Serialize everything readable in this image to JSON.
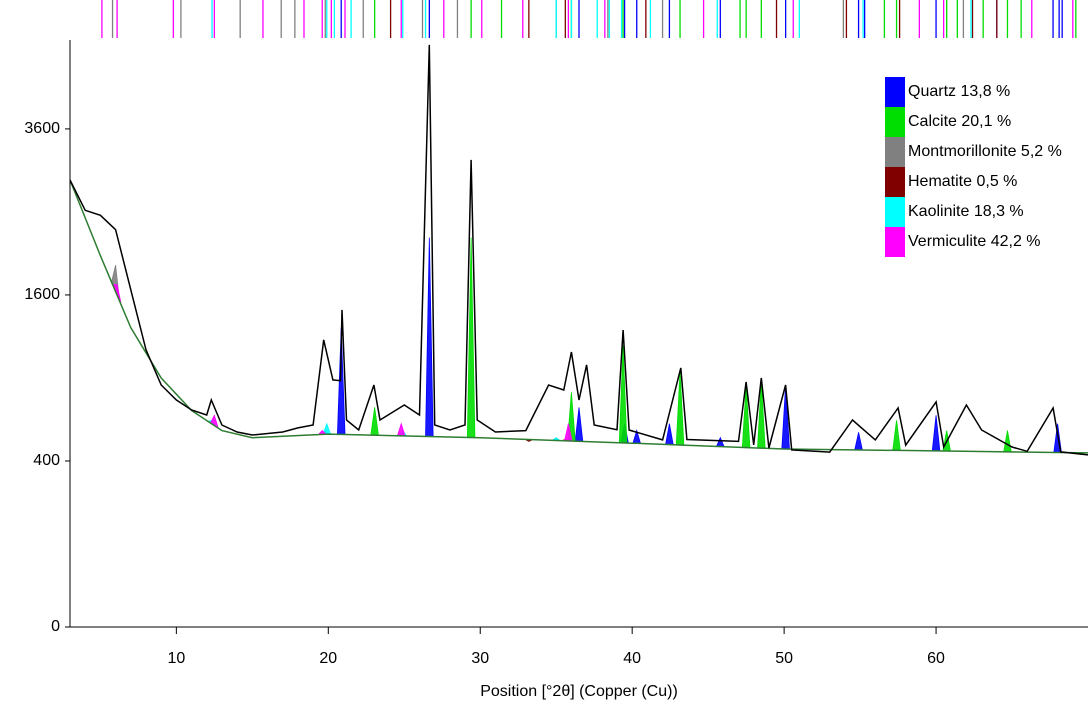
{
  "chart_data": {
    "type": "xrd",
    "x_label": "Position [°2θ] (Copper (Cu))",
    "xlim": [
      3,
      70
    ],
    "xticks": [
      10,
      20,
      30,
      40,
      50,
      60
    ],
    "ylim": [
      0,
      5000
    ],
    "yticks": [
      0,
      400,
      1600,
      3600
    ],
    "y_scale": "sqrt",
    "legend": "upper right",
    "observed": {
      "color": "#000000",
      "x": [
        3,
        4,
        5,
        6,
        7,
        8,
        9,
        10,
        11,
        12,
        12.3,
        13,
        14,
        15,
        17,
        18,
        19,
        19.7,
        20.3,
        20.8,
        20.9,
        21.2,
        22,
        23,
        23.4,
        25,
        26,
        26.65,
        27,
        28,
        29,
        29.4,
        29.8,
        31,
        33,
        34.5,
        35.5,
        36,
        36.5,
        37,
        37.5,
        39,
        39.4,
        39.8,
        42,
        43.2,
        43.6,
        47,
        47.5,
        48,
        48.5,
        49,
        50.1,
        50.5,
        53,
        54.5,
        56,
        57.5,
        58,
        60,
        60.5,
        62,
        63,
        65,
        66,
        67.7,
        68.2,
        70
      ],
      "values": [
        2900,
        2520,
        2460,
        2290,
        1650,
        1115,
        850,
        748,
        683,
        652,
        748,
        592,
        552,
        535,
        552,
        575,
        592,
        1196,
        886,
        880,
        1459,
        622,
        563,
        850,
        622,
        715,
        652,
        4917,
        592,
        563,
        592,
        3166,
        622,
        552,
        560,
        850,
        815,
        1097,
        748,
        997,
        592,
        565,
        1280,
        563,
        508,
        974,
        510,
        500,
        871,
        481,
        900,
        465,
        850,
        455,
        444,
        622,
        508,
        696,
        480,
        735,
        470,
        715,
        563,
        470,
        448,
        696,
        445,
        430
      ]
    },
    "background": {
      "color": "#2e7d32",
      "x": [
        3,
        5,
        7,
        9,
        11,
        13,
        15,
        20,
        30,
        40,
        50,
        60,
        70
      ],
      "values": [
        2900,
        2000,
        1300,
        900,
        680,
        560,
        520,
        540,
        520,
        490,
        460,
        450,
        440
      ]
    },
    "series": [
      {
        "name": "Quartz 13,8 %",
        "color": "#0000ff",
        "x": [
          20.85,
          26.65,
          36.5,
          39.5,
          40.3,
          42.45,
          45.8,
          50.1,
          54.9,
          60.0,
          68.0
        ],
        "values": [
          1300,
          2200,
          700,
          600,
          560,
          600,
          520,
          850,
          550,
          650,
          600
        ],
        "reference_lines": [
          20.85,
          26.65,
          36.5,
          39.5,
          40.3,
          42.45,
          45.8,
          50.1,
          54.9,
          55.3,
          60.0,
          64.0,
          67.7,
          68.1,
          68.3
        ]
      },
      {
        "name": "Calcite 20,1 %",
        "color": "#00dd00",
        "x": [
          23.05,
          29.4,
          36.0,
          39.4,
          43.15,
          47.5,
          48.5,
          57.4,
          60.7,
          64.7
        ],
        "values": [
          700,
          2200,
          800,
          1150,
          950,
          850,
          880,
          620,
          560,
          560
        ],
        "reference_lines": [
          23.05,
          29.4,
          31.4,
          36.0,
          39.4,
          43.15,
          47.1,
          47.5,
          48.5,
          56.6,
          57.4,
          60.7,
          61.4,
          63.1,
          64.7,
          65.6,
          69.2
        ]
      },
      {
        "name": "Montmorillonite 5,2 %",
        "color": "#808080",
        "x": [
          6.0,
          19.8,
          35.0
        ],
        "values": [
          1900,
          560,
          520
        ],
        "reference_lines": [
          5.8,
          10.3,
          14.2,
          16.9,
          17.8,
          19.8,
          22.3,
          26.2,
          28.5,
          35.0,
          38.4,
          42.0,
          53.9,
          61.8
        ]
      },
      {
        "name": "Hematite 0,5 %",
        "color": "#800000",
        "x": [
          33.2,
          35.6
        ],
        "values": [
          500,
          510
        ],
        "reference_lines": [
          24.1,
          33.2,
          35.6,
          40.9,
          49.5,
          54.1,
          57.6,
          62.4,
          64.0
        ]
      },
      {
        "name": "Kaolinite 18,3 %",
        "color": "#00ffff",
        "x": [
          12.35,
          19.9,
          24.9,
          35.0
        ],
        "values": [
          620,
          600,
          560,
          520
        ],
        "reference_lines": [
          12.35,
          19.9,
          20.4,
          21.5,
          24.9,
          26.4,
          35.0,
          36.0,
          37.7,
          38.5,
          39.3,
          41.2,
          45.6,
          51.0,
          55.2,
          62.3
        ]
      },
      {
        "name": "Vermiculite 42,2 %",
        "color": "#ff00ff",
        "x": [
          6.1,
          12.5,
          19.6,
          24.8,
          35.8
        ],
        "values": [
          1700,
          650,
          560,
          600,
          600
        ],
        "reference_lines": [
          5.1,
          6.1,
          9.8,
          12.5,
          15.7,
          18.4,
          19.6,
          20.2,
          21.1,
          24.8,
          27.6,
          30.1,
          32.8,
          35.8,
          38.2,
          44.7,
          50.6,
          58.9,
          60.5,
          66.3,
          69.0
        ]
      }
    ]
  }
}
